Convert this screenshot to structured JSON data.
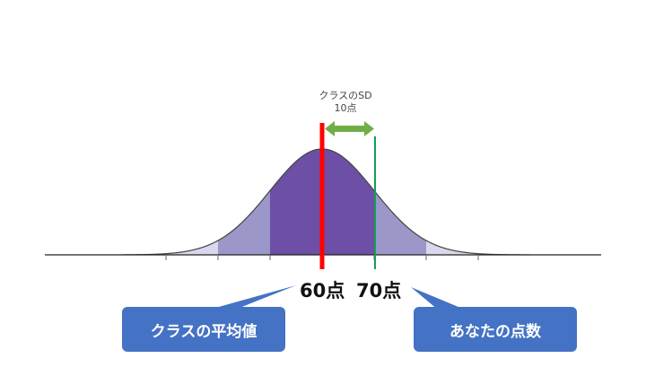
{
  "sd_label": {
    "line1": "クラスのSD",
    "line2": "10点"
  },
  "scores": {
    "mean": "60点",
    "yours": "70点"
  },
  "callouts": {
    "mean": "クラスの平均値",
    "yours": "あなたの点数"
  },
  "colors": {
    "outer_band": "#d9d7ec",
    "middle_band": "#9b97c8",
    "center_band": "#6d4fa6",
    "mean_line": "#ff0000",
    "your_line": "#11a052",
    "arrow": "#70ad47",
    "callout": "#4472c4"
  }
}
